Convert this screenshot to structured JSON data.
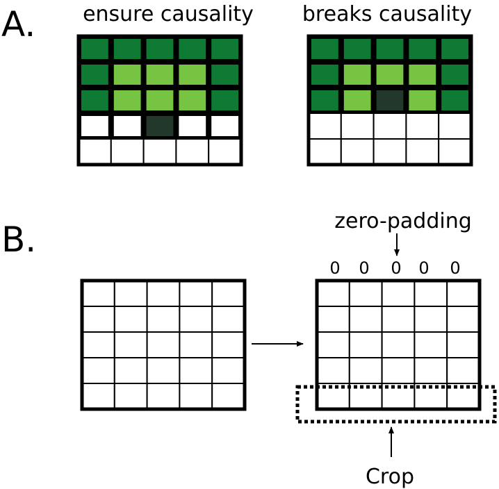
{
  "panels": {
    "a_label": "A.",
    "b_label": "B."
  },
  "grids_a": [
    {
      "title": "ensure causality",
      "cells": [
        [
          "d",
          "d",
          "d",
          "d",
          "d"
        ],
        [
          "d",
          "l",
          "l",
          "l",
          "d"
        ],
        [
          "d",
          "l",
          "l",
          "l",
          "d"
        ],
        [
          "w",
          "w",
          "x",
          "w",
          "w"
        ],
        [
          "w",
          "w",
          "w",
          "w",
          "w"
        ]
      ]
    },
    {
      "title": "breaks causality",
      "cells": [
        [
          "d",
          "d",
          "d",
          "d",
          "d"
        ],
        [
          "d",
          "l",
          "l",
          "l",
          "d"
        ],
        [
          "d",
          "l",
          "x",
          "l",
          "d"
        ],
        [
          "w",
          "w",
          "w",
          "w",
          "w"
        ],
        [
          "w",
          "w",
          "w",
          "w",
          "w"
        ]
      ]
    }
  ],
  "colors": {
    "d": "#0e7a34",
    "l": "#76c442",
    "x": "#22382a",
    "w": "#ffffff",
    "frame": "#000000"
  },
  "panel_b": {
    "zero_padding_label": "zero-padding",
    "zeros": [
      "0",
      "0",
      "0",
      "0",
      "0"
    ],
    "crop_label": "Crop"
  }
}
